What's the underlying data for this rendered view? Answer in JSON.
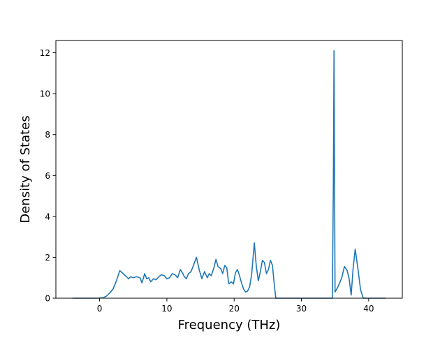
{
  "chart_data": {
    "type": "line",
    "title": "",
    "xlabel": "Frequency (THz)",
    "ylabel": "Density of States",
    "xlim": [
      -6.5,
      45
    ],
    "ylim": [
      0,
      12.6
    ],
    "xticks": [
      0,
      10,
      20,
      30,
      40
    ],
    "yticks": [
      0,
      2,
      4,
      6,
      8,
      10,
      12
    ],
    "grid": false,
    "legend": "none",
    "line_color": "#1f77b4",
    "series": [
      {
        "x": [
          -4.0,
          -2.0,
          -0.5,
          0.5,
          1.0,
          1.5,
          2.0,
          2.5,
          3.0,
          3.5,
          4.0,
          4.3,
          4.6,
          5.0,
          5.5,
          6.0,
          6.3,
          6.7,
          7.0,
          7.3,
          7.6,
          8.0,
          8.4,
          8.8,
          9.2,
          9.6,
          10.0,
          10.4,
          10.8,
          11.2,
          11.6,
          12.0,
          12.3,
          12.6,
          12.9,
          13.2,
          13.6,
          14.0,
          14.4,
          14.8,
          15.2,
          15.6,
          16.0,
          16.3,
          16.6,
          17.0,
          17.3,
          17.6,
          18.0,
          18.3,
          18.6,
          18.9,
          19.2,
          19.6,
          19.9,
          20.2,
          20.5,
          20.8,
          21.1,
          21.4,
          21.7,
          22.0,
          22.3,
          22.6,
          23.0,
          23.3,
          23.6,
          23.9,
          24.2,
          24.5,
          24.8,
          25.1,
          25.4,
          25.7,
          26.0,
          26.2,
          26.5,
          30.0,
          34.2,
          34.6,
          34.75,
          34.85,
          35.0,
          35.5,
          36.0,
          36.4,
          36.8,
          37.1,
          37.4,
          37.7,
          38.0,
          38.4,
          38.8,
          39.2,
          39.6,
          42.5
        ],
        "y": [
          0.0,
          0.0,
          0.0,
          0.02,
          0.1,
          0.25,
          0.45,
          0.85,
          1.35,
          1.2,
          1.05,
          0.95,
          1.05,
          1.0,
          1.05,
          1.0,
          0.75,
          1.2,
          0.95,
          1.0,
          0.8,
          0.95,
          0.9,
          1.05,
          1.15,
          1.1,
          0.95,
          1.0,
          1.2,
          1.15,
          1.0,
          1.4,
          1.25,
          1.05,
          0.95,
          1.2,
          1.3,
          1.65,
          2.0,
          1.4,
          0.95,
          1.3,
          1.0,
          1.2,
          1.1,
          1.5,
          1.9,
          1.55,
          1.45,
          1.2,
          1.6,
          1.5,
          0.7,
          0.8,
          0.7,
          1.25,
          1.4,
          1.1,
          0.75,
          0.45,
          0.3,
          0.35,
          0.55,
          1.15,
          2.7,
          1.55,
          0.85,
          1.3,
          1.85,
          1.75,
          1.2,
          1.4,
          1.85,
          1.6,
          0.55,
          0.0,
          0.0,
          0.0,
          0.0,
          0.0,
          5.5,
          12.1,
          0.3,
          0.6,
          1.0,
          1.55,
          1.35,
          0.95,
          0.15,
          1.5,
          2.4,
          1.45,
          0.4,
          0.0,
          0.0,
          0.0
        ]
      }
    ]
  }
}
